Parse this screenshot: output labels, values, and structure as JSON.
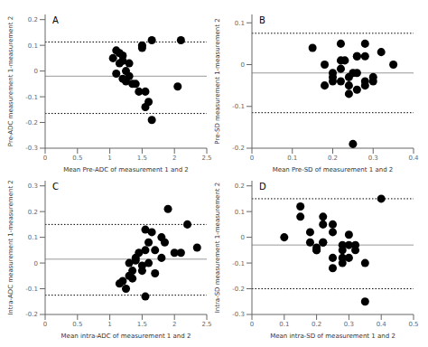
{
  "chart_data": [
    {
      "type": "scatter",
      "title": "A",
      "x": [
        1.05,
        1.1,
        1.15,
        1.2,
        1.25,
        1.1,
        1.15,
        1.2,
        1.25,
        1.3,
        1.35,
        1.4,
        1.45,
        1.5,
        1.55,
        1.6,
        1.65,
        1.5,
        1.55,
        1.65,
        2.05,
        2.1,
        1.2,
        1.3
      ],
      "values": [
        0.05,
        0.08,
        0.07,
        0.04,
        0.0,
        -0.01,
        0.03,
        -0.03,
        -0.04,
        -0.02,
        -0.05,
        -0.05,
        -0.08,
        0.1,
        -0.08,
        -0.12,
        0.12,
        0.09,
        -0.14,
        -0.19,
        -0.06,
        0.12,
        0.06,
        0.03
      ],
      "color": "#000000",
      "lines": [
        {
          "value": -0.02,
          "color": "#999999",
          "line_style": "solid"
        },
        {
          "value": 0.113,
          "color": "#000000",
          "line_style": "dotted"
        },
        {
          "value": -0.165,
          "color": "#000000",
          "line_style": "dotted"
        }
      ],
      "xlim": [
        0.0,
        2.5
      ],
      "ylim": [
        -0.3,
        0.22
      ],
      "xticks": [
        0,
        0.5,
        1,
        1.5,
        2,
        2.5
      ],
      "yticks": [
        -0.3,
        -0.2,
        -0.1,
        0,
        0.1,
        0.2
      ],
      "xlabel": "Mean Pre-ADC of measurement 1 and 2",
      "ylabel": "Pre-ADC measurement 1-measurement 2"
    },
    {
      "type": "scatter",
      "title": "B",
      "x": [
        0.15,
        0.18,
        0.2,
        0.22,
        0.24,
        0.26,
        0.28,
        0.3,
        0.32,
        0.2,
        0.22,
        0.24,
        0.26,
        0.28,
        0.3,
        0.18,
        0.22,
        0.24,
        0.26,
        0.28,
        0.25,
        0.22,
        0.23,
        0.35,
        0.2,
        0.25,
        0.28,
        0.26
      ],
      "values": [
        0.04,
        -0.05,
        -0.04,
        0.01,
        -0.03,
        -0.06,
        -0.04,
        -0.04,
        0.03,
        -0.02,
        0.05,
        -0.05,
        0.02,
        -0.05,
        -0.03,
        0.0,
        -0.04,
        -0.07,
        0.02,
        0.05,
        -0.19,
        -0.01,
        0.01,
        0.0,
        -0.03,
        -0.02,
        0.02,
        -0.02
      ],
      "color": "#000000",
      "lines": [
        {
          "value": -0.02,
          "color": "#999999",
          "line_style": "solid"
        },
        {
          "value": 0.075,
          "color": "#000000",
          "line_style": "dotted"
        },
        {
          "value": -0.115,
          "color": "#000000",
          "line_style": "dotted"
        }
      ],
      "xlim": [
        0.0,
        0.4
      ],
      "ylim": [
        -0.2,
        0.12
      ],
      "xticks": [
        0,
        0.1,
        0.2,
        0.3,
        0.4
      ],
      "yticks": [
        -0.2,
        -0.1,
        0,
        0.1
      ],
      "xlabel": "Mean Pre-SD of measurement 1 and 2",
      "ylabel": "Pre-SD measurement 1-measurement 2"
    },
    {
      "type": "scatter",
      "title": "C",
      "x": [
        1.15,
        1.2,
        1.25,
        1.3,
        1.35,
        1.4,
        1.45,
        1.5,
        1.55,
        1.6,
        1.65,
        1.7,
        1.8,
        1.85,
        1.9,
        2.0,
        2.1,
        2.2,
        2.35,
        1.3,
        1.35,
        1.4,
        1.5,
        1.55,
        1.6,
        1.7,
        1.8,
        1.55
      ],
      "values": [
        -0.08,
        -0.07,
        -0.1,
        0.0,
        -0.03,
        0.02,
        0.04,
        -0.01,
        0.05,
        0.08,
        0.12,
        0.05,
        0.1,
        0.08,
        0.21,
        0.04,
        0.04,
        0.15,
        0.06,
        -0.05,
        -0.06,
        0.01,
        -0.03,
        -0.13,
        0.0,
        -0.04,
        0.02,
        0.13
      ],
      "color": "#000000",
      "lines": [
        {
          "value": 0.015,
          "color": "#999999",
          "line_style": "solid"
        },
        {
          "value": 0.15,
          "color": "#000000",
          "line_style": "dotted"
        },
        {
          "value": -0.125,
          "color": "#000000",
          "line_style": "dotted"
        }
      ],
      "xlim": [
        0.0,
        2.5
      ],
      "ylim": [
        -0.2,
        0.32
      ],
      "xticks": [
        0,
        0.5,
        1,
        1.5,
        2,
        2.5
      ],
      "yticks": [
        -0.2,
        -0.1,
        0,
        0.1,
        0.2,
        0.3
      ],
      "xlabel": "Mean intra-ADC of measurement 1 and 2",
      "ylabel": "Intra-ADC measurement 1-measurement 2"
    },
    {
      "type": "scatter",
      "title": "D",
      "x": [
        0.1,
        0.15,
        0.18,
        0.2,
        0.22,
        0.25,
        0.28,
        0.3,
        0.32,
        0.35,
        0.18,
        0.2,
        0.22,
        0.25,
        0.28,
        0.3,
        0.22,
        0.25,
        0.28,
        0.32,
        0.2,
        0.25,
        0.3,
        0.35,
        0.4,
        0.22,
        0.28,
        0.15
      ],
      "values": [
        0.0,
        0.12,
        0.02,
        -0.05,
        -0.02,
        0.05,
        -0.03,
        -0.08,
        -0.03,
        -0.1,
        -0.02,
        -0.05,
        0.05,
        -0.08,
        -0.1,
        -0.03,
        0.08,
        0.02,
        -0.08,
        -0.05,
        -0.04,
        -0.12,
        0.01,
        -0.25,
        0.15,
        -0.02,
        -0.05,
        0.08
      ],
      "color": "#000000",
      "lines": [
        {
          "value": -0.03,
          "color": "#999999",
          "line_style": "solid"
        },
        {
          "value": 0.15,
          "color": "#000000",
          "line_style": "dotted"
        },
        {
          "value": -0.2,
          "color": "#000000",
          "line_style": "dotted"
        }
      ],
      "xlim": [
        0.0,
        0.5
      ],
      "ylim": [
        -0.3,
        0.22
      ],
      "xticks": [
        0,
        0.1,
        0.2,
        0.3,
        0.4,
        0.5
      ],
      "yticks": [
        -0.3,
        -0.2,
        -0.1,
        0,
        0.1,
        0.2
      ],
      "xlabel": "Mean intra-SD of measurement 1 and 2",
      "ylabel": "Intra-SD measurement 1-measurement 2"
    }
  ]
}
